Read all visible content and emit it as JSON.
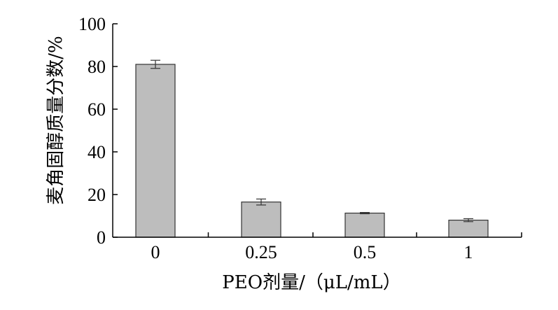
{
  "chart_data": {
    "type": "bar",
    "categories": [
      "0",
      "0.25",
      "0.5",
      "1"
    ],
    "values": [
      81,
      16.5,
      11.3,
      8
    ],
    "errors": [
      1.9,
      1.4,
      0.3,
      0.7
    ],
    "ylim": [
      0,
      100
    ],
    "yticks": [
      0,
      20,
      40,
      60,
      80,
      100
    ],
    "xlabel": "PEO剂量/（μL/mL）",
    "ylabel": "麦角固醇质量分数/%",
    "grid": false,
    "colors": {
      "bar_fill": "#bdbdbd",
      "bar_stroke": "#333333",
      "axis": "#000000"
    }
  }
}
